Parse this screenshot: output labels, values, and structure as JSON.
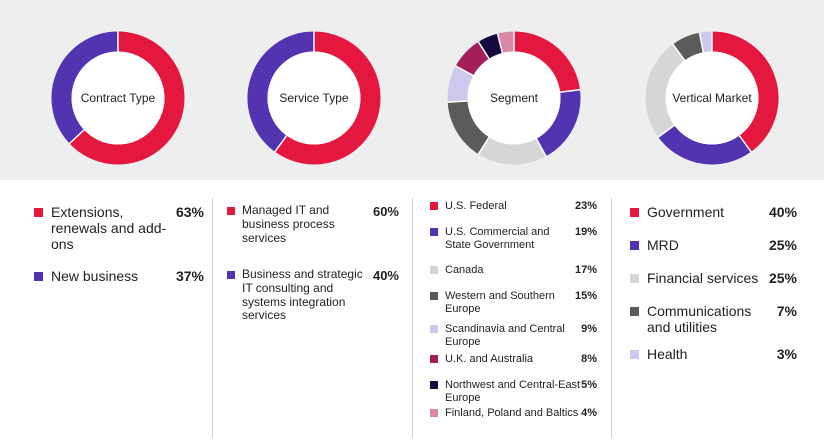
{
  "chart_data": [
    {
      "type": "pie",
      "title": "Contract Type",
      "categories": [
        "Extensions, renewals and add-ons",
        "New business"
      ],
      "values": [
        63,
        37
      ],
      "labels": [
        "63%",
        "37%"
      ],
      "colors": [
        "#e4173e",
        "#5234b0"
      ]
    },
    {
      "type": "pie",
      "title": "Service Type",
      "categories": [
        "Managed IT and business process services",
        "Business and strategic IT consulting and systems integration services"
      ],
      "values": [
        60,
        40
      ],
      "labels": [
        "60%",
        "40%"
      ],
      "colors": [
        "#e4173e",
        "#5234b0"
      ]
    },
    {
      "type": "pie",
      "title": "Segment",
      "categories": [
        "U.S. Federal",
        "U.S. Commercial and State Government",
        "Canada",
        "Western and Southern Europe",
        "Scandinavia and Central Europe",
        "U.K. and Australia",
        "Northwest and Central-East Europe",
        "Finland, Poland and Baltics"
      ],
      "values": [
        23,
        19,
        17,
        15,
        9,
        8,
        5,
        4
      ],
      "labels": [
        "23%",
        "19%",
        "17%",
        "15%",
        "9%",
        "8%",
        "5%",
        "4%"
      ],
      "colors": [
        "#e4173e",
        "#5234b0",
        "#d6d6d6",
        "#5b5b5b",
        "#cec9ec",
        "#a41e5a",
        "#17093f",
        "#d987a6"
      ]
    },
    {
      "type": "pie",
      "title": "Vertical Market",
      "categories": [
        "Government",
        "MRD",
        "Financial services",
        "Communications and utilities",
        "Health"
      ],
      "values": [
        40,
        25,
        25,
        7,
        3
      ],
      "labels": [
        "40%",
        "25%",
        "25%",
        "7%",
        "3%"
      ],
      "colors": [
        "#e4173e",
        "#5234b0",
        "#d6d6d6",
        "#5b5b5b",
        "#cec9ec"
      ]
    }
  ]
}
